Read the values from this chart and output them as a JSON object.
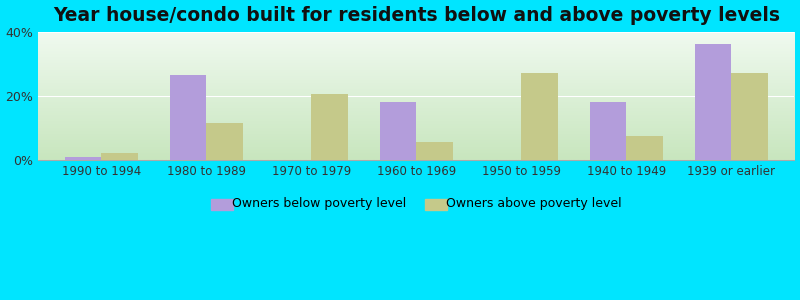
{
  "title": "Year house/condo built for residents below and above poverty levels",
  "categories": [
    "1990 to 1994",
    "1980 to 1989",
    "1970 to 1979",
    "1960 to 1969",
    "1950 to 1959",
    "1940 to 1949",
    "1939 or earlier"
  ],
  "below_poverty": [
    1.0,
    26.5,
    0,
    18.0,
    0,
    18.0,
    36.0
  ],
  "above_poverty": [
    2.0,
    11.5,
    20.5,
    5.5,
    27.0,
    7.5,
    27.0
  ],
  "below_color": "#b39ddb",
  "above_color": "#c5c98a",
  "background_outer": "#00e5ff",
  "ylim": [
    0,
    40
  ],
  "yticks": [
    0,
    20,
    40
  ],
  "ytick_labels": [
    "0%",
    "20%",
    "40%"
  ],
  "legend_below": "Owners below poverty level",
  "legend_above": "Owners above poverty level",
  "bar_width": 0.35,
  "title_fontsize": 13.5
}
